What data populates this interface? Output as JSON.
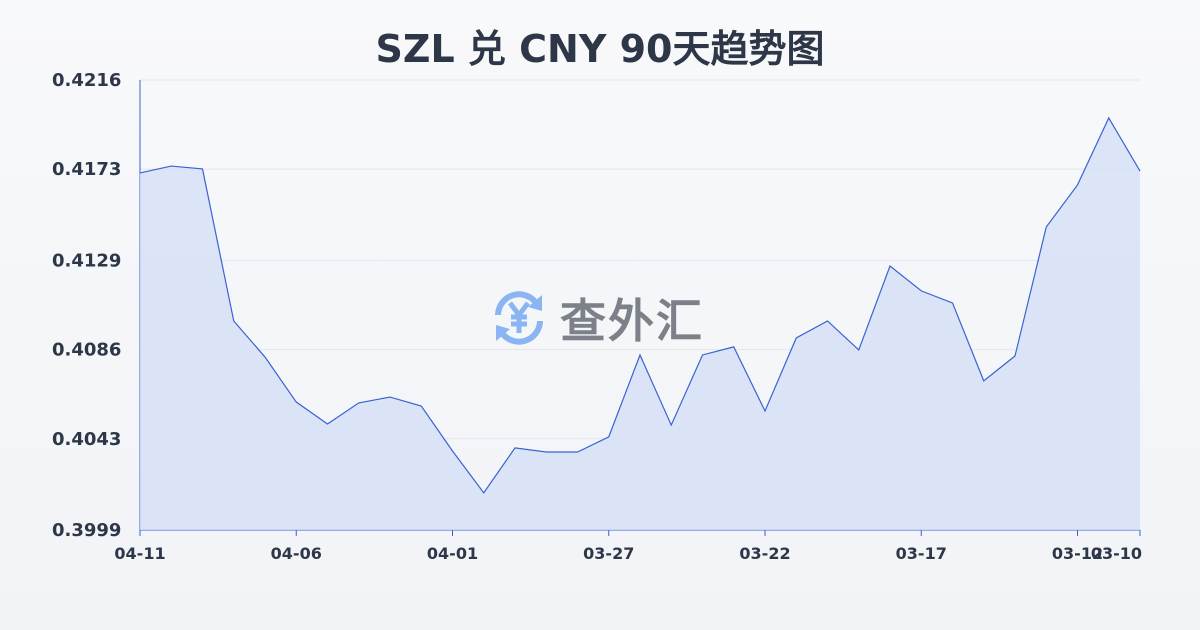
{
  "title": "SZL 兑 CNY 90天趋势图",
  "watermark": {
    "text": "查外汇",
    "icon": "yen-exchange-icon"
  },
  "colors": {
    "line": "#3a63d0",
    "fill": "#d4e0f6",
    "grid": "#e3e6ec",
    "text": "#2d3748",
    "watermark_icon": "#8ab4f2"
  },
  "chart_data": {
    "type": "area",
    "title": "SZL 兑 CNY 90天趋势图",
    "xlabel": "",
    "ylabel": "",
    "ylim": [
      0.3999,
      0.4216
    ],
    "y_ticks": [
      "0.4216",
      "0.4173",
      "0.4129",
      "0.4086",
      "0.4043",
      "0.3999"
    ],
    "x_ticks": [
      "04-11",
      "04-06",
      "04-01",
      "03-27",
      "03-22",
      "03-17",
      "03-12",
      "03-10"
    ],
    "grid": true,
    "x": [
      "04-11",
      "04-10",
      "04-09",
      "04-08",
      "04-07",
      "04-06",
      "04-05",
      "04-04",
      "04-03",
      "04-02",
      "04-01",
      "03-31",
      "03-30",
      "03-29",
      "03-28",
      "03-27",
      "03-26",
      "03-25",
      "03-24",
      "03-23",
      "03-22",
      "03-21",
      "03-20",
      "03-19",
      "03-18",
      "03-17",
      "03-16",
      "03-15",
      "03-14",
      "03-13",
      "03-12",
      "03-11",
      "03-10"
    ],
    "values": [
      0.41712,
      0.41745,
      0.41731,
      0.40998,
      0.40824,
      0.40607,
      0.40501,
      0.40603,
      0.40631,
      0.40588,
      0.40371,
      0.40169,
      0.40386,
      0.40366,
      0.40366,
      0.40439,
      0.40834,
      0.40496,
      0.40834,
      0.40873,
      0.40564,
      0.40916,
      0.40998,
      0.40858,
      0.41263,
      0.41143,
      0.41085,
      0.40709,
      0.40829,
      0.41451,
      0.41654,
      0.41977,
      0.41721
    ]
  }
}
